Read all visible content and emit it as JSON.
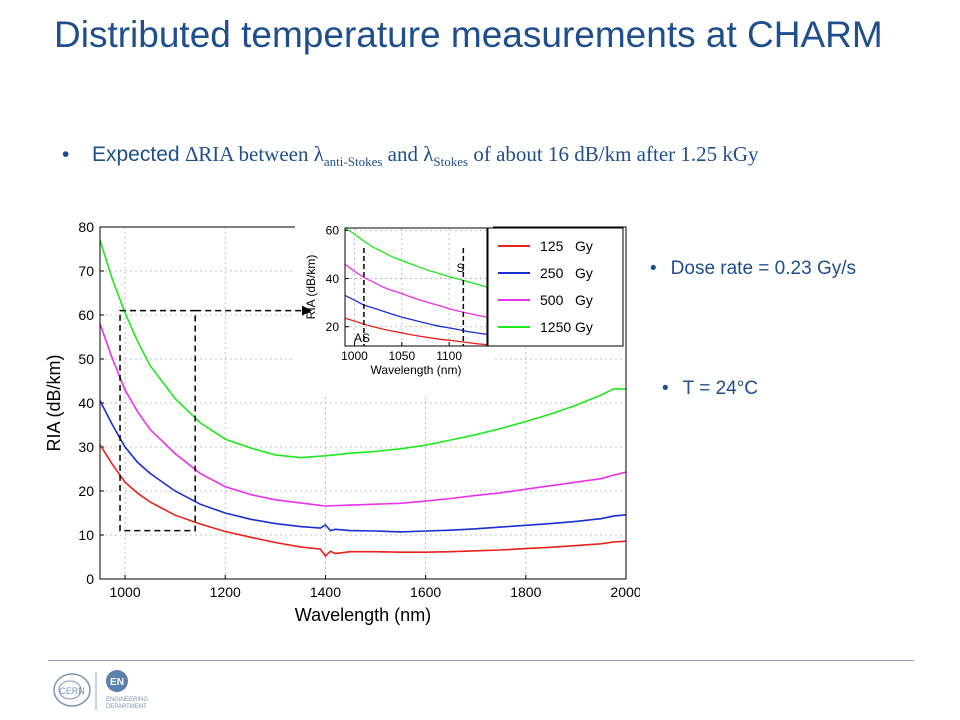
{
  "slide": {
    "title": "Distributed temperature measurements at CHARM",
    "bullet_main": {
      "expected": "Expected",
      "delta": "∆RIA between λ",
      "sub_anti": "anti-Stokes",
      "and": " and λ",
      "sub_stokes": "Stokes",
      "rest": "  of about 16 dB/km after 1.25 kGy"
    },
    "dose_rate": "Dose rate = 0.23 Gy/s",
    "temperature": "T = 24°C",
    "bullet_symbol": "•"
  },
  "footer": {
    "logo_left_text": "CERN",
    "logo_right_text": "EN",
    "dept_line1": "ENGINEERING",
    "dept_line2": "DEPARTMENT"
  },
  "colors": {
    "title": "#1f4e8c",
    "s125": "#e8211b",
    "s250": "#1a2fd1",
    "s500": "#e832e8",
    "s1250": "#1ee81e"
  },
  "chart_data": [
    {
      "type": "line",
      "xlabel": "Wavelength (nm)",
      "ylabel": "RIA (dB/km)",
      "xlim": [
        950,
        2000
      ],
      "ylim": [
        0,
        80
      ],
      "xticks": [
        1000,
        1200,
        1400,
        1600,
        1800,
        2000
      ],
      "yticks": [
        0,
        10,
        20,
        30,
        40,
        50,
        60,
        70,
        80
      ],
      "grid": true,
      "zoom_box": {
        "x": [
          990,
          1140
        ],
        "y": [
          11,
          61
        ]
      },
      "series": [
        {
          "name": "125   Gy",
          "color": "#e8211b",
          "x": [
            950,
            975,
            1000,
            1025,
            1050,
            1100,
            1150,
            1200,
            1250,
            1300,
            1350,
            1390,
            1400,
            1410,
            1420,
            1450,
            1500,
            1550,
            1600,
            1650,
            1700,
            1750,
            1800,
            1850,
            1900,
            1950,
            1975,
            2000
          ],
          "y": [
            30.5,
            26,
            22,
            19.5,
            17.5,
            14.5,
            12.5,
            10.8,
            9.5,
            8.3,
            7.3,
            6.8,
            5.2,
            6.3,
            5.8,
            6.2,
            6.2,
            6.1,
            6.1,
            6.2,
            6.4,
            6.6,
            6.9,
            7.2,
            7.6,
            8.0,
            8.4,
            8.6
          ]
        },
        {
          "name": "250   Gy",
          "color": "#1a2fd1",
          "x": [
            950,
            975,
            1000,
            1025,
            1050,
            1100,
            1150,
            1200,
            1250,
            1300,
            1350,
            1390,
            1400,
            1410,
            1420,
            1450,
            1500,
            1550,
            1600,
            1650,
            1700,
            1750,
            1800,
            1850,
            1900,
            1950,
            1975,
            2000
          ],
          "y": [
            40.5,
            35,
            30,
            26.5,
            24,
            20,
            17,
            15,
            13.6,
            12.6,
            11.9,
            11.6,
            12.3,
            11.0,
            11.3,
            11.0,
            10.9,
            10.7,
            10.9,
            11.1,
            11.4,
            11.8,
            12.2,
            12.6,
            13.1,
            13.7,
            14.3,
            14.6
          ]
        },
        {
          "name": "500   Gy",
          "color": "#e832e8",
          "x": [
            950,
            975,
            1000,
            1025,
            1050,
            1100,
            1150,
            1200,
            1250,
            1300,
            1350,
            1400,
            1450,
            1500,
            1550,
            1600,
            1650,
            1700,
            1750,
            1800,
            1850,
            1900,
            1950,
            1975,
            2000
          ],
          "y": [
            58,
            50,
            43,
            38,
            34,
            28.5,
            24,
            21,
            19.2,
            18,
            17.3,
            16.6,
            16.8,
            17.0,
            17.2,
            17.7,
            18.3,
            19.0,
            19.6,
            20.4,
            21.2,
            22.0,
            22.8,
            23.6,
            24.3
          ]
        },
        {
          "name": "1250 Gy",
          "color": "#1ee81e",
          "x": [
            950,
            975,
            1000,
            1025,
            1050,
            1100,
            1150,
            1200,
            1250,
            1300,
            1350,
            1400,
            1450,
            1500,
            1550,
            1600,
            1650,
            1700,
            1750,
            1800,
            1850,
            1900,
            1950,
            1975,
            2000
          ],
          "y": [
            77,
            68,
            60.5,
            54,
            48.5,
            41,
            35.5,
            31.8,
            29.8,
            28.2,
            27.6,
            28.0,
            28.6,
            29.0,
            29.6,
            30.4,
            31.6,
            32.8,
            34.2,
            35.8,
            37.5,
            39.5,
            41.8,
            43.2,
            43.2
          ]
        }
      ]
    },
    {
      "type": "line",
      "role": "inset",
      "xlabel": "Wavelength (nm)",
      "ylabel": "RIA (dB/km)",
      "xlim": [
        990,
        1140
      ],
      "ylim": [
        12,
        61
      ],
      "xticks": [
        1000,
        1050,
        1100
      ],
      "yticks": [
        20,
        40,
        60
      ],
      "grid": true,
      "annotations": [
        {
          "text": "AS",
          "x": 1008
        },
        {
          "text": "S",
          "x": 1112
        }
      ],
      "markers": [
        1010,
        1115
      ],
      "series": [
        {
          "name": "125   Gy",
          "color": "#e8211b",
          "x": [
            990,
            1000,
            1010,
            1020,
            1030,
            1040,
            1050,
            1060,
            1070,
            1080,
            1090,
            1100,
            1110,
            1120,
            1130,
            1140
          ],
          "y": [
            23.5,
            22.4,
            21.0,
            20.0,
            19.0,
            18.2,
            17.5,
            16.7,
            16.0,
            15.4,
            14.8,
            14.4,
            13.9,
            13.4,
            12.9,
            12.6
          ]
        },
        {
          "name": "250   Gy",
          "color": "#1a2fd1",
          "x": [
            990,
            1000,
            1010,
            1020,
            1030,
            1040,
            1050,
            1060,
            1070,
            1080,
            1090,
            1100,
            1110,
            1120,
            1130,
            1140
          ],
          "y": [
            33,
            31,
            29,
            27.8,
            26.5,
            25.2,
            24,
            23,
            22,
            21,
            20.2,
            19.5,
            18.8,
            18,
            17.4,
            16.8
          ]
        },
        {
          "name": "500   Gy",
          "color": "#e832e8",
          "x": [
            990,
            1000,
            1010,
            1020,
            1030,
            1040,
            1050,
            1060,
            1070,
            1080,
            1090,
            1100,
            1110,
            1120,
            1130,
            1140
          ],
          "y": [
            46,
            43,
            40.5,
            38.5,
            36.5,
            35,
            33.8,
            32.3,
            31,
            29.8,
            28.7,
            27.5,
            26.5,
            25.6,
            24.7,
            24
          ]
        },
        {
          "name": "1250 Gy",
          "color": "#1ee81e",
          "x": [
            990,
            1000,
            1010,
            1020,
            1030,
            1040,
            1050,
            1060,
            1070,
            1080,
            1090,
            1100,
            1110,
            1120,
            1130,
            1140
          ],
          "y": [
            61,
            58.5,
            55.5,
            53,
            51,
            49,
            47.5,
            46,
            44.5,
            43.2,
            42,
            40.8,
            39.8,
            38.7,
            37.6,
            36.5
          ]
        }
      ]
    }
  ]
}
